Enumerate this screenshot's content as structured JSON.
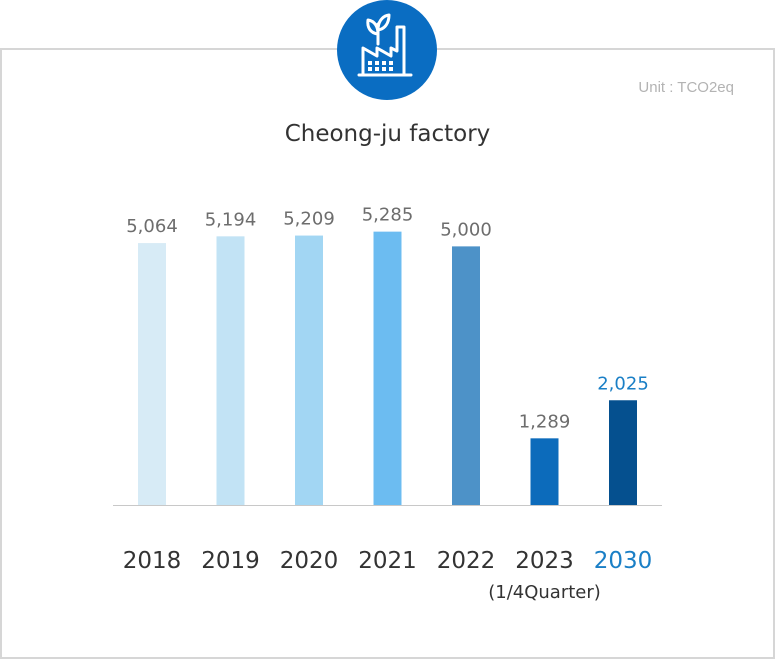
{
  "header": {
    "icon": "factory-leaf-icon",
    "unit_label": "Unit : TCO2eq"
  },
  "chart_data": {
    "type": "bar",
    "title": "Cheong-ju factory",
    "xlabel": "",
    "ylabel": "",
    "unit": "TCO2eq",
    "ylim": [
      0,
      5800
    ],
    "grid": false,
    "categories": [
      "2018",
      "2019",
      "2020",
      "2021",
      "2022",
      "2023",
      "2030"
    ],
    "category_sublabels": [
      "",
      "",
      "",
      "",
      "",
      "(1/4Quarter)",
      ""
    ],
    "values": [
      5064,
      5194,
      5209,
      5285,
      5000,
      1289,
      2025
    ],
    "value_labels": [
      "5,064",
      "5,194",
      "5,209",
      "5,285",
      "5,000",
      "1,289",
      "2,025"
    ],
    "colors": [
      "#d7ebf6",
      "#c2e3f5",
      "#a2d6f3",
      "#6cbcf1",
      "#4d92c8",
      "#0c6bbb",
      "#05508f"
    ],
    "highlight_category": "2030",
    "highlight_color": "#1a7fc6"
  }
}
